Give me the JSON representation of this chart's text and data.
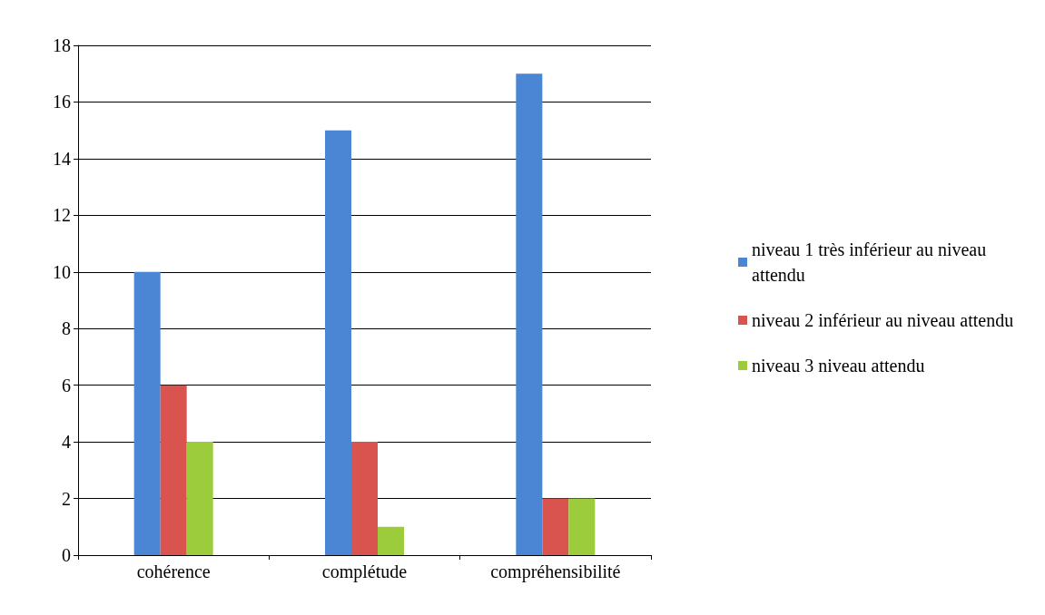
{
  "chart_data": {
    "type": "bar",
    "categories": [
      "cohérence",
      "complétude",
      "compréhensibilité"
    ],
    "series": [
      {
        "name": "niveau 1 très inférieur au niveau attendu",
        "color": "#4a86d4",
        "values": [
          10,
          15,
          17
        ]
      },
      {
        "name": "niveau 2 inférieur au niveau attendu",
        "color": "#d9534f",
        "values": [
          6,
          4,
          2
        ]
      },
      {
        "name": "niveau 3 niveau attendu",
        "color": "#9ccc3c",
        "values": [
          4,
          1,
          2
        ]
      }
    ],
    "ylim": [
      0,
      18
    ],
    "yticks": [
      0,
      2,
      4,
      6,
      8,
      10,
      12,
      14,
      16,
      18
    ],
    "grid": "y",
    "legend": "right"
  }
}
